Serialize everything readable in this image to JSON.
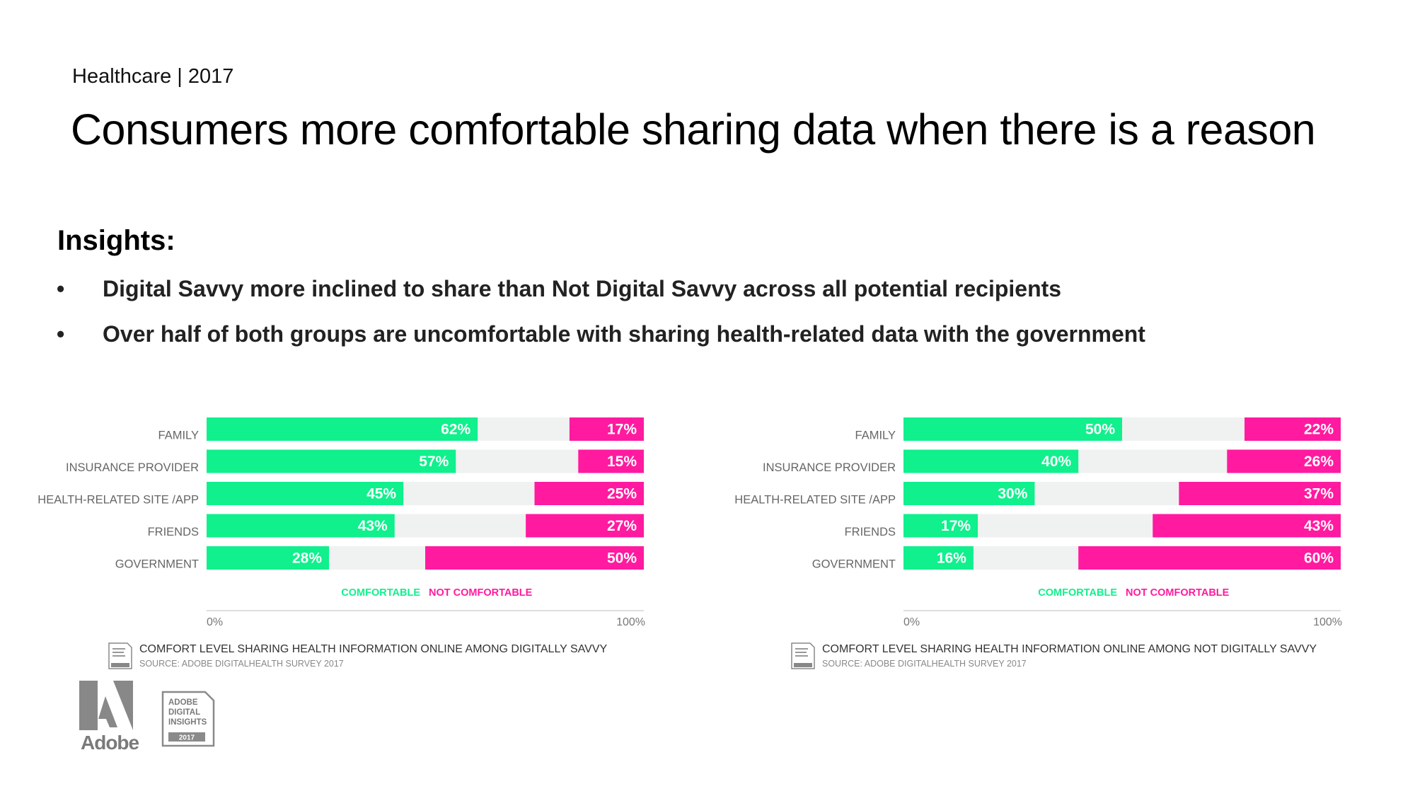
{
  "header": {
    "kicker": "Healthcare | 2017",
    "title": "Consumers more comfortable sharing data when there is a reason"
  },
  "insights": {
    "heading": "Insights:",
    "bullet_glyph": "•",
    "items": [
      "Digital Savvy more inclined to share than Not Digital Savvy across all potential recipients",
      "Over half of both groups are uncomfortable with sharing health-related data with the government"
    ]
  },
  "colors": {
    "comfortable": "#10f08c",
    "not_comfortable": "#ff1aa0",
    "track": "#f0f1f1",
    "axis_text": "#666666"
  },
  "chart_data": [
    {
      "type": "bar",
      "orientation": "horizontal",
      "title": "COMFORT LEVEL SHARING HEALTH INFORMATION ONLINE AMONG DIGITALLY SAVVY",
      "source": "SOURCE: ADOBE DIGITALHEALTH SURVEY 2017",
      "categories": [
        "FAMILY",
        "INSURANCE PROVIDER",
        "HEALTH-RELATED SITE /APP",
        "FRIENDS",
        "GOVERNMENT"
      ],
      "series": [
        {
          "name": "COMFORTABLE",
          "values": [
            62,
            57,
            45,
            43,
            28
          ],
          "labels": [
            "62%",
            "57%",
            "45%",
            "43%",
            "28%"
          ],
          "anchor": "left"
        },
        {
          "name": "NOT COMFORTABLE",
          "values": [
            17,
            15,
            25,
            27,
            50
          ],
          "labels": [
            "17%",
            "15%",
            "25%",
            "27%",
            "50%"
          ],
          "anchor": "right"
        }
      ],
      "xlim": [
        0,
        100
      ],
      "xticks": [
        "0%",
        "100%"
      ],
      "legend": "bottom-center"
    },
    {
      "type": "bar",
      "orientation": "horizontal",
      "title": "COMFORT LEVEL SHARING HEALTH INFORMATION ONLINE AMONG NOT DIGITALLY SAVVY",
      "source": "SOURCE: ADOBE DIGITALHEALTH SURVEY 2017",
      "categories": [
        "FAMILY",
        "INSURANCE PROVIDER",
        "HEALTH-RELATED SITE /APP",
        "FRIENDS",
        "GOVERNMENT"
      ],
      "series": [
        {
          "name": "COMFORTABLE",
          "values": [
            50,
            40,
            30,
            17,
            16
          ],
          "labels": [
            "50%",
            "40%",
            "30%",
            "17%",
            "16%"
          ],
          "anchor": "left"
        },
        {
          "name": "NOT COMFORTABLE",
          "values": [
            22,
            26,
            37,
            43,
            60
          ],
          "labels": [
            "22%",
            "26%",
            "37%",
            "43%",
            "60%"
          ],
          "anchor": "right"
        }
      ],
      "xlim": [
        0,
        100
      ],
      "xticks": [
        "0%",
        "100%"
      ],
      "legend": "bottom-center"
    }
  ],
  "branding": {
    "adobe_word": "Adobe",
    "badge_lines": [
      "ADOBE",
      "DIGITAL",
      "INSIGHTS"
    ],
    "badge_year": "2017"
  }
}
